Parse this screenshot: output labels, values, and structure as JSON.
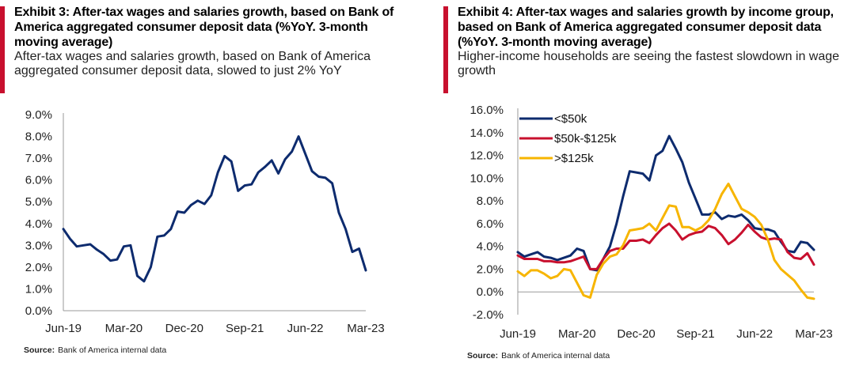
{
  "colors": {
    "red": "#c8102e",
    "navy": "#0d2b6e",
    "crimson": "#c8102e",
    "gold": "#f7b500",
    "axis": "#9a9a9a"
  },
  "chart_data": [
    {
      "type": "line",
      "exhibit_label": "Exhibit 3:",
      "title": "After-tax wages and salaries growth, based on Bank of America aggregated consumer deposit data (%YoY. 3-month moving average)",
      "subtitle": "After-tax wages and salaries growth, based on Bank of America aggregated consumer deposit data, slowed to just 2% YoY",
      "source_label": "Source:",
      "source": "Bank of America internal data",
      "xlabel": "",
      "ylabel": "",
      "ylim": [
        0,
        9
      ],
      "yticks": [
        0,
        1,
        2,
        3,
        4,
        5,
        6,
        7,
        8,
        9
      ],
      "ytick_labels": [
        "0.0%",
        "1.0%",
        "2.0%",
        "3.0%",
        "4.0%",
        "5.0%",
        "6.0%",
        "7.0%",
        "8.0%",
        "9.0%"
      ],
      "xlim": [
        0,
        45
      ],
      "xticks": [
        0,
        9,
        18,
        27,
        36,
        45
      ],
      "xtick_labels": [
        "Jun-19",
        "Mar-20",
        "Dec-20",
        "Sep-21",
        "Jun-22",
        "Mar-23"
      ],
      "series": [
        {
          "name": "After-tax wages and salaries growth",
          "color": "#0d2b6e",
          "x": [
            0,
            1,
            2,
            3,
            4,
            5,
            6,
            7,
            8,
            9,
            10,
            11,
            12,
            13,
            14,
            15,
            16,
            17,
            18,
            19,
            20,
            21,
            22,
            23,
            24,
            25,
            26,
            27,
            28,
            29,
            30,
            31,
            32,
            33,
            34,
            35,
            36,
            37,
            38,
            39,
            40,
            41,
            42,
            43,
            44,
            45
          ],
          "values": [
            3.75,
            3.3,
            2.95,
            3.0,
            3.05,
            2.8,
            2.6,
            2.3,
            2.35,
            2.95,
            3.0,
            1.6,
            1.35,
            2.0,
            3.4,
            3.45,
            3.75,
            4.55,
            4.5,
            4.85,
            5.05,
            4.9,
            5.3,
            6.35,
            7.1,
            6.85,
            5.5,
            5.75,
            5.8,
            6.35,
            6.6,
            6.9,
            6.3,
            6.95,
            7.3,
            8.0,
            7.2,
            6.4,
            6.15,
            6.1,
            5.85,
            4.5,
            3.75,
            2.7,
            2.85,
            1.85
          ]
        }
      ]
    },
    {
      "type": "line",
      "exhibit_label": "Exhibit 4:",
      "title": "After-tax wages and salaries growth by income group, based on Bank  of America aggregated consumer deposit data (%YoY. 3-month moving average)",
      "subtitle": "Higher-income households are seeing the fastest slowdown in wage growth",
      "source_label": "Source:",
      "source": "Bank of America internal data",
      "xlabel": "",
      "ylabel": "",
      "ylim": [
        -2,
        16
      ],
      "yticks": [
        -2,
        0,
        2,
        4,
        6,
        8,
        10,
        12,
        14,
        16
      ],
      "ytick_labels": [
        "-2.0%",
        "0.0%",
        "2.0%",
        "4.0%",
        "6.0%",
        "8.0%",
        "10.0%",
        "12.0%",
        "14.0%",
        "16.0%"
      ],
      "xlim": [
        0,
        45
      ],
      "xticks": [
        0,
        9,
        18,
        27,
        36,
        45
      ],
      "xtick_labels": [
        "Jun-19",
        "Mar-20",
        "Dec-20",
        "Sep-21",
        "Jun-22",
        "Mar-23"
      ],
      "legend": "top-left",
      "series": [
        {
          "name": "<$50k",
          "color": "#0d2b6e",
          "x": [
            0,
            1,
            2,
            3,
            4,
            5,
            6,
            7,
            8,
            9,
            10,
            11,
            12,
            13,
            14,
            15,
            16,
            17,
            18,
            19,
            20,
            21,
            22,
            23,
            24,
            25,
            26,
            27,
            28,
            29,
            30,
            31,
            32,
            33,
            34,
            35,
            36,
            37,
            38,
            39,
            40,
            41,
            42,
            43,
            44,
            45
          ],
          "values": [
            3.5,
            3.1,
            3.3,
            3.5,
            3.1,
            3.0,
            2.8,
            3.0,
            3.2,
            3.8,
            3.6,
            2.0,
            1.9,
            2.9,
            4.0,
            6.0,
            8.4,
            10.6,
            10.5,
            10.4,
            9.8,
            12.0,
            12.4,
            13.7,
            12.6,
            11.4,
            9.6,
            8.2,
            6.8,
            6.8,
            7.0,
            6.4,
            6.7,
            6.6,
            6.8,
            6.3,
            5.6,
            5.5,
            5.5,
            5.3,
            4.4,
            3.6,
            3.5,
            4.4,
            4.3,
            3.7
          ]
        },
        {
          "name": "$50k-$125k",
          "color": "#c8102e",
          "x": [
            0,
            1,
            2,
            3,
            4,
            5,
            6,
            7,
            8,
            9,
            10,
            11,
            12,
            13,
            14,
            15,
            16,
            17,
            18,
            19,
            20,
            21,
            22,
            23,
            24,
            25,
            26,
            27,
            28,
            29,
            30,
            31,
            32,
            33,
            34,
            35,
            36,
            37,
            38,
            39,
            40,
            41,
            42,
            43,
            44,
            45
          ],
          "values": [
            3.2,
            2.9,
            2.9,
            2.9,
            2.7,
            2.7,
            2.6,
            2.6,
            2.7,
            2.9,
            3.1,
            2.0,
            2.0,
            2.9,
            3.6,
            3.8,
            3.8,
            4.5,
            4.5,
            4.6,
            4.3,
            5.0,
            5.6,
            6.0,
            5.4,
            4.6,
            5.0,
            5.2,
            5.3,
            5.8,
            5.6,
            5.0,
            4.2,
            4.6,
            5.2,
            5.9,
            5.3,
            4.8,
            4.6,
            4.7,
            4.6,
            3.5,
            3.0,
            2.9,
            3.4,
            2.4
          ]
        },
        {
          "name": ">$125k",
          "color": "#f7b500",
          "x": [
            0,
            1,
            2,
            3,
            4,
            5,
            6,
            7,
            8,
            9,
            10,
            11,
            12,
            13,
            14,
            15,
            16,
            17,
            18,
            19,
            20,
            21,
            22,
            23,
            24,
            25,
            26,
            27,
            28,
            29,
            30,
            31,
            32,
            33,
            34,
            35,
            36,
            37,
            38,
            39,
            40,
            41,
            42,
            43,
            44,
            45
          ],
          "values": [
            1.8,
            1.4,
            1.9,
            1.9,
            1.6,
            1.2,
            1.4,
            2.0,
            1.9,
            0.8,
            -0.3,
            -0.5,
            1.5,
            2.5,
            3.1,
            3.3,
            4.1,
            5.4,
            5.5,
            5.6,
            6.0,
            5.4,
            6.5,
            7.6,
            7.5,
            5.7,
            5.7,
            5.4,
            5.7,
            6.3,
            7.3,
            8.6,
            9.5,
            8.4,
            7.3,
            7.0,
            6.6,
            5.9,
            4.6,
            2.8,
            2.0,
            1.5,
            1.0,
            0.2,
            -0.5,
            -0.6
          ]
        }
      ]
    }
  ]
}
